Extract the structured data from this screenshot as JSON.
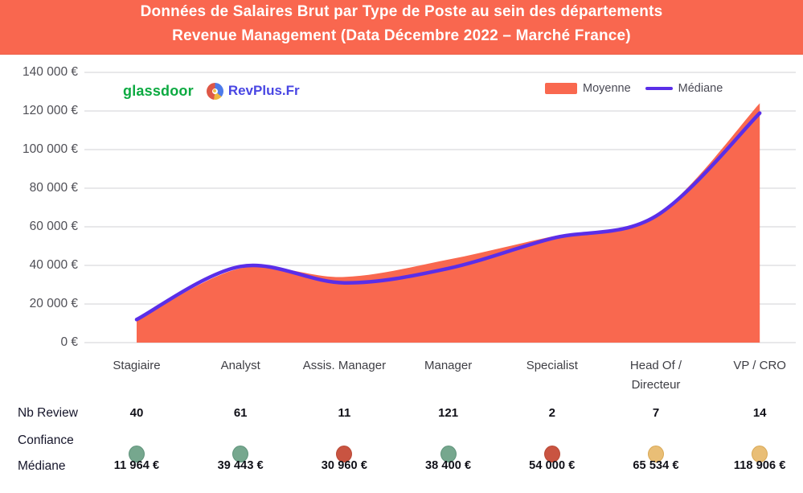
{
  "header": {
    "title_line1": "Données de Salaires Brut par Type de Poste au sein des départements",
    "title_line2": "Revenue Management (Data Décembre 2022 – Marché France)",
    "background": "#f9674f"
  },
  "branding": {
    "glassdoor_label": "glassdoor",
    "glassdoor_color": "#0caa41",
    "revplus_label": "RevPlus.Fr",
    "revplus_color": "#4946e3"
  },
  "legend": {
    "moyenne_label": "Moyenne",
    "mediane_label": "Médiane"
  },
  "colors": {
    "area_coral": "#f9684f",
    "line_purple": "#5a2ee8",
    "gridline": "#e8e8ea"
  },
  "chart_data": {
    "type": "area",
    "title": "Données de Salaires Brut par Type de Poste — Revenue Management (Décembre 2022, Marché France)",
    "categories": [
      "Stagiaire",
      "Analyst",
      "Assis. Manager",
      "Manager",
      "Specialist",
      "Head Of /\nDirecteur",
      "VP / CRO"
    ],
    "series": [
      {
        "name": "Moyenne",
        "render": "area",
        "color": "#f9684f",
        "values": [
          11200,
          38500,
          34000,
          43000,
          55000,
          66000,
          124000
        ]
      },
      {
        "name": "Médiane",
        "render": "line",
        "color": "#5a2ee8",
        "values": [
          11964,
          39443,
          30960,
          38400,
          54000,
          65534,
          118906
        ]
      }
    ],
    "ylim": [
      0,
      140000
    ],
    "yticks": [
      "140 000 €",
      "120 000 €",
      "100 000 €",
      "80 000 €",
      "60 000 €",
      "40 000 €",
      "20 000 €",
      "0 €"
    ],
    "grid": true,
    "legend_position": "top-right"
  },
  "table": {
    "rows": [
      {
        "label": "Nb Review",
        "values": [
          "40",
          "61",
          "11",
          "121",
          "2",
          "7",
          "14"
        ]
      },
      {
        "label": "Confiance",
        "dots": [
          "green",
          "green",
          "red",
          "green",
          "red",
          "yellow",
          "yellow"
        ]
      },
      {
        "label": "Médiane",
        "values": [
          "11 964 €",
          "39 443 €",
          "30 960 €",
          "38 400 €",
          "54 000 €",
          "65 534 €",
          "118 906 €"
        ]
      }
    ],
    "dot_fill": {
      "green": "#76a78e",
      "red": "#c95441",
      "yellow": "#e9be76"
    },
    "dot_border": {
      "green": "#5f937b",
      "red": "#b84835",
      "yellow": "#d9a855"
    }
  }
}
